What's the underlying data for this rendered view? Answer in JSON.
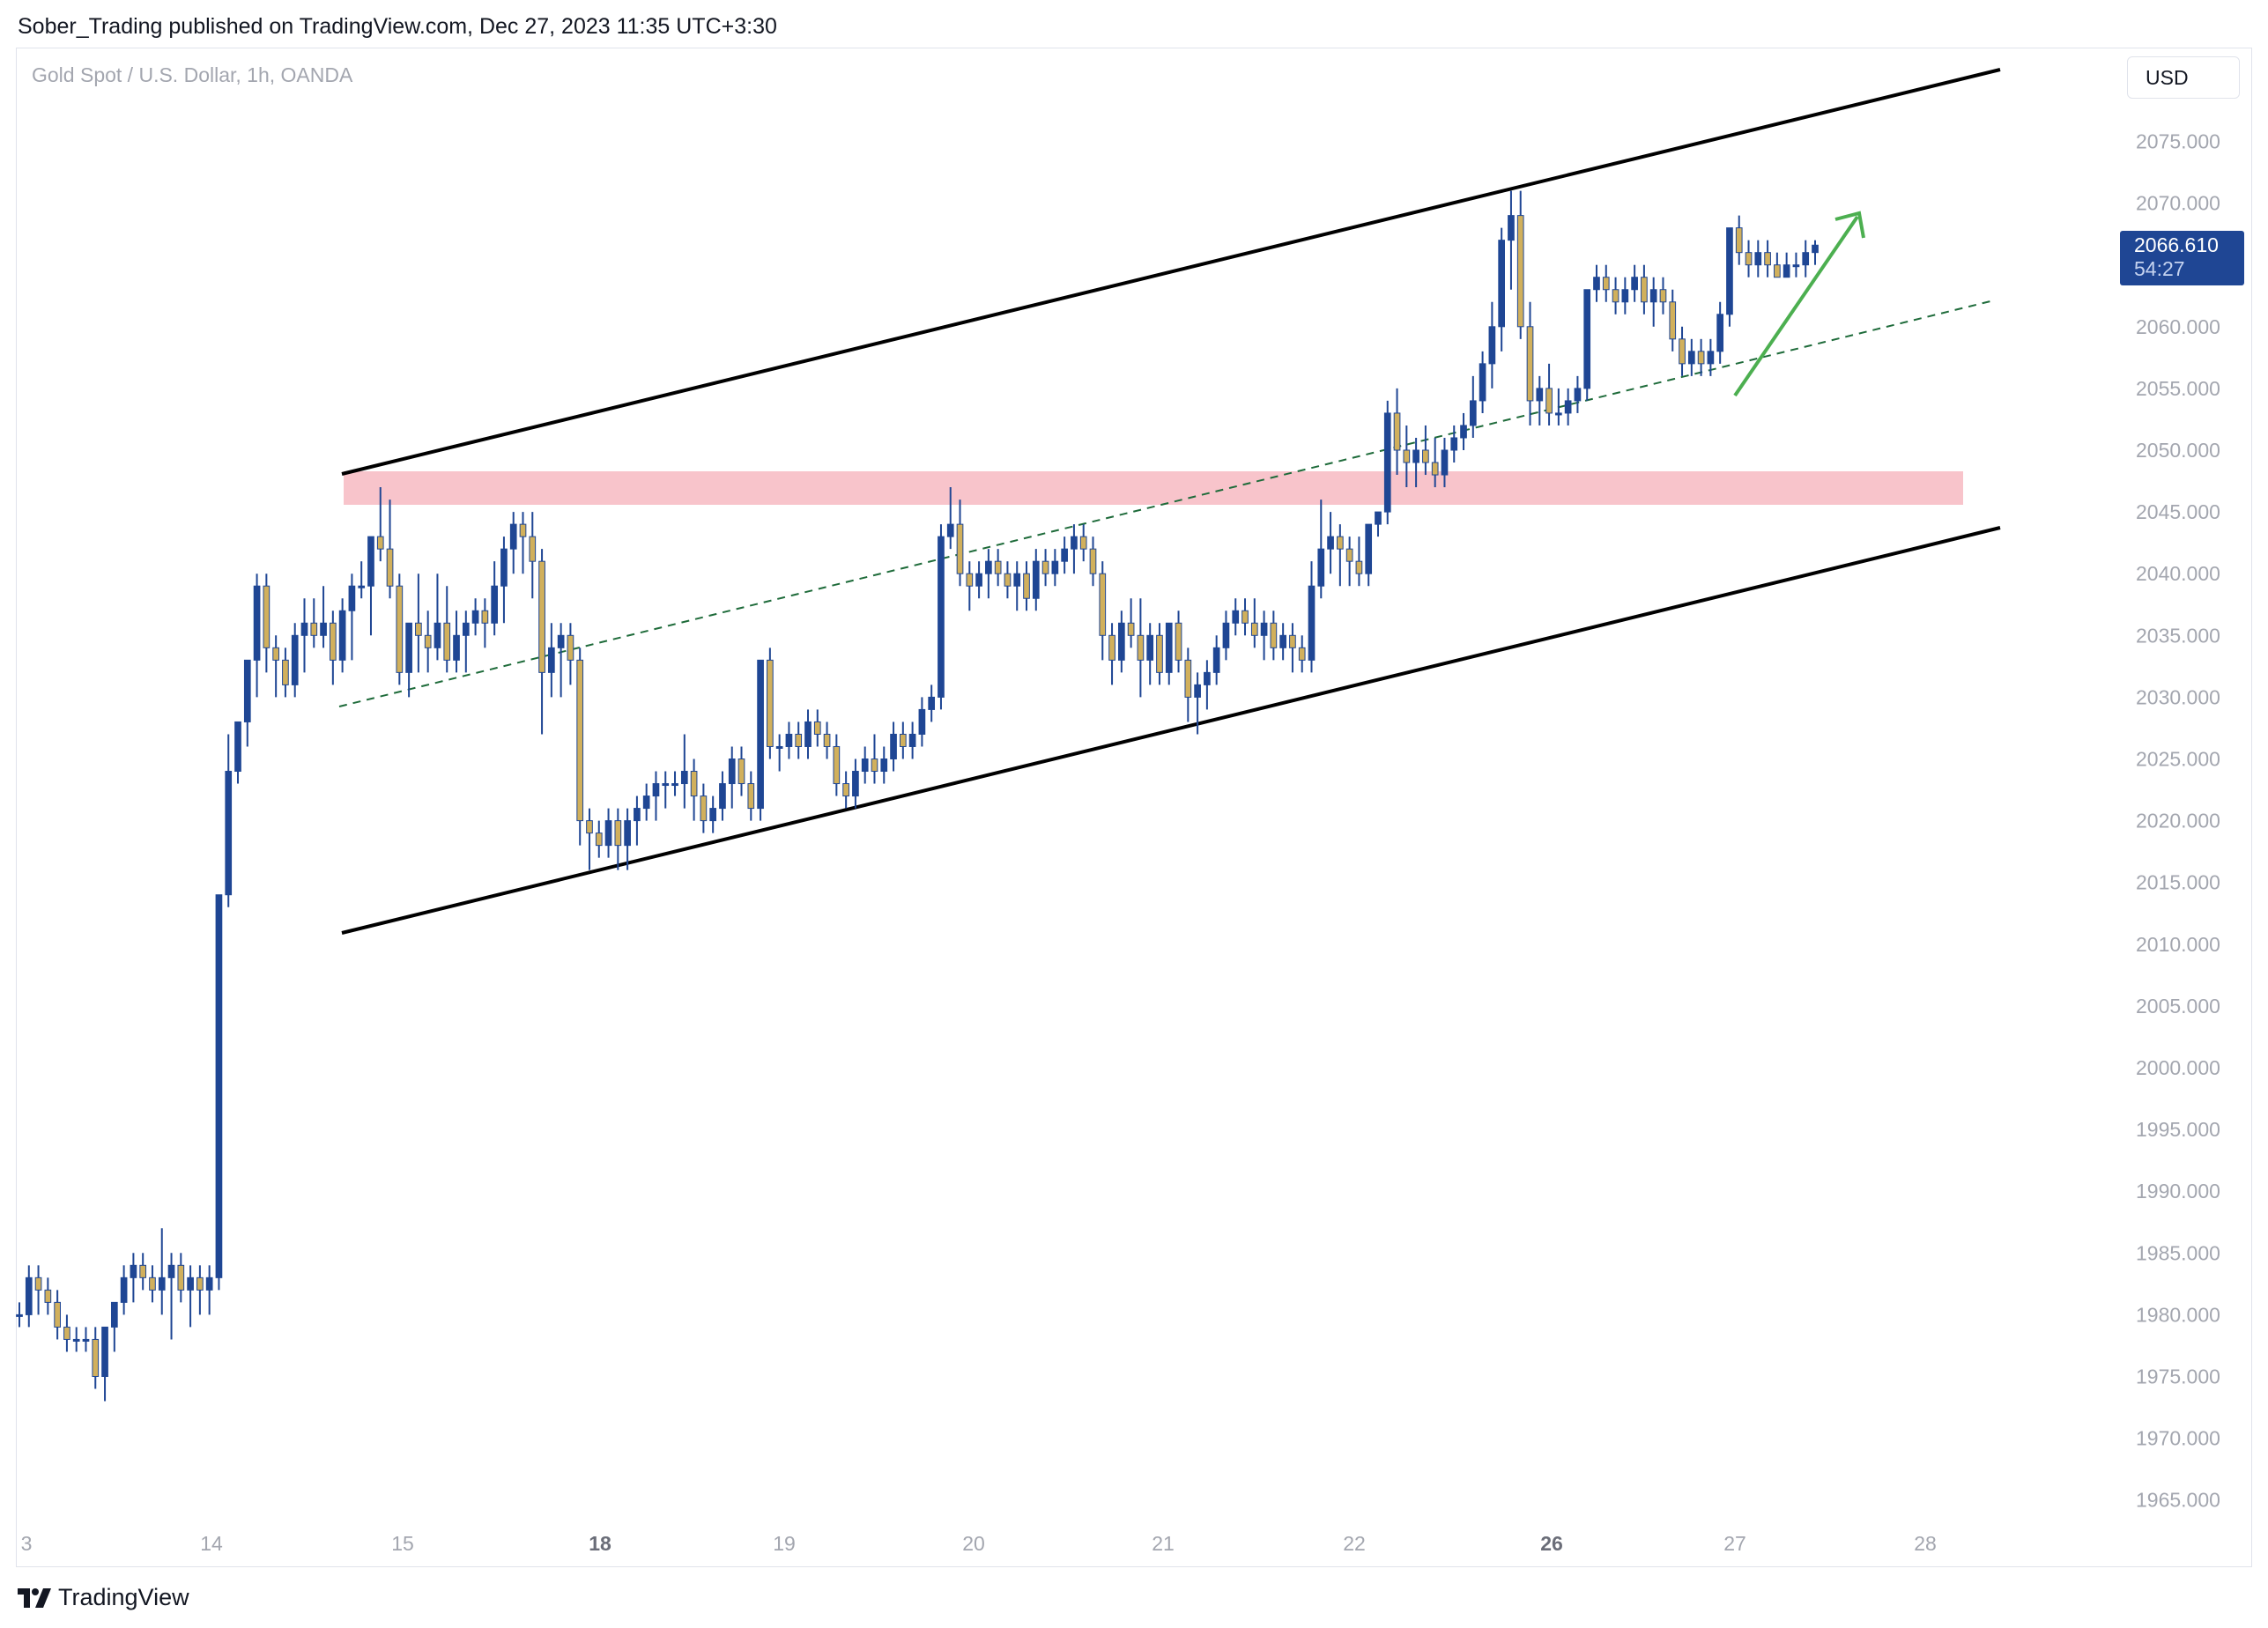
{
  "publisher": "Sober_Trading published on TradingView.com, Dec 27, 2023 11:35 UTC+3:30",
  "symbol": "Gold Spot / U.S. Dollar, 1h, OANDA",
  "currency": "USD",
  "last_price": "2066.610",
  "countdown": "54:27",
  "brand": "TradingView",
  "colors": {
    "up": "#1f4694",
    "down": "#d1b05c",
    "channel": "#000000",
    "midline": "#1e6b3a",
    "zone": "#f8c4cb",
    "arrow": "#4caf50"
  },
  "chart_data": {
    "type": "candlestick",
    "ylim": [
      1960,
      2080
    ],
    "y_ticks": [
      "2075.000",
      "2070.000",
      "2065.000",
      "2060.000",
      "2055.000",
      "2050.000",
      "2045.000",
      "2040.000",
      "2035.000",
      "2030.000",
      "2025.000",
      "2020.000",
      "2015.000",
      "2010.000",
      "2005.000",
      "2000.000",
      "1995.000",
      "1990.000",
      "1985.000",
      "1980.000",
      "1975.000",
      "1970.000",
      "1965.000"
    ],
    "x_ticks": [
      {
        "label": "3",
        "bold": false
      },
      {
        "label": "14",
        "bold": false
      },
      {
        "label": "15",
        "bold": false
      },
      {
        "label": "18",
        "bold": true
      },
      {
        "label": "19",
        "bold": false
      },
      {
        "label": "20",
        "bold": false
      },
      {
        "label": "21",
        "bold": false
      },
      {
        "label": "22",
        "bold": false
      },
      {
        "label": "26",
        "bold": true
      },
      {
        "label": "27",
        "bold": false
      },
      {
        "label": "28",
        "bold": false
      }
    ],
    "candles": [
      [
        1980,
        1981,
        1979,
        1980
      ],
      [
        1980,
        1984,
        1979,
        1983
      ],
      [
        1983,
        1984,
        1980,
        1982
      ],
      [
        1982,
        1983,
        1980,
        1981
      ],
      [
        1981,
        1982,
        1978,
        1979
      ],
      [
        1979,
        1980,
        1977,
        1978
      ],
      [
        1978,
        1979,
        1977,
        1978
      ],
      [
        1978,
        1979,
        1977,
        1978
      ],
      [
        1978,
        1979,
        1974,
        1975
      ],
      [
        1975,
        1979,
        1973,
        1979
      ],
      [
        1979,
        1981,
        1977,
        1981
      ],
      [
        1981,
        1984,
        1980,
        1983
      ],
      [
        1983,
        1985,
        1981,
        1984
      ],
      [
        1984,
        1985,
        1982,
        1983
      ],
      [
        1983,
        1984,
        1981,
        1982
      ],
      [
        1982,
        1987,
        1980,
        1983
      ],
      [
        1983,
        1985,
        1978,
        1984
      ],
      [
        1984,
        1985,
        1981,
        1982
      ],
      [
        1982,
        1984,
        1979,
        1983
      ],
      [
        1983,
        1984,
        1980,
        1982
      ],
      [
        1982,
        1984,
        1980,
        1983
      ],
      [
        1983,
        2014,
        1982,
        2014
      ],
      [
        2014,
        2027,
        2013,
        2024
      ],
      [
        2024,
        2028,
        2023,
        2028
      ],
      [
        2028,
        2033,
        2026,
        2033
      ],
      [
        2033,
        2040,
        2030,
        2039
      ],
      [
        2039,
        2040,
        2032,
        2034
      ],
      [
        2034,
        2035,
        2030,
        2033
      ],
      [
        2033,
        2034,
        2030,
        2031
      ],
      [
        2031,
        2036,
        2030,
        2035
      ],
      [
        2035,
        2038,
        2032,
        2036
      ],
      [
        2036,
        2038,
        2034,
        2035
      ],
      [
        2035,
        2039,
        2034,
        2036
      ],
      [
        2036,
        2037,
        2031,
        2033
      ],
      [
        2033,
        2038,
        2032,
        2037
      ],
      [
        2037,
        2040,
        2033,
        2039
      ],
      [
        2039,
        2041,
        2038,
        2039
      ],
      [
        2039,
        2043,
        2035,
        2043
      ],
      [
        2043,
        2047,
        2041,
        2042
      ],
      [
        2042,
        2046,
        2038,
        2039
      ],
      [
        2039,
        2040,
        2031,
        2032
      ],
      [
        2032,
        2036,
        2030,
        2036
      ],
      [
        2036,
        2040,
        2032,
        2035
      ],
      [
        2035,
        2037,
        2032,
        2034
      ],
      [
        2034,
        2040,
        2033,
        2036
      ],
      [
        2036,
        2039,
        2032,
        2033
      ],
      [
        2033,
        2037,
        2032,
        2035
      ],
      [
        2035,
        2037,
        2032,
        2036
      ],
      [
        2036,
        2038,
        2035,
        2037
      ],
      [
        2037,
        2038,
        2034,
        2036
      ],
      [
        2036,
        2041,
        2035,
        2039
      ],
      [
        2039,
        2043,
        2036,
        2042
      ],
      [
        2042,
        2045,
        2040,
        2044
      ],
      [
        2044,
        2045,
        2040,
        2043
      ],
      [
        2043,
        2045,
        2038,
        2041
      ],
      [
        2041,
        2042,
        2027,
        2032
      ],
      [
        2032,
        2036,
        2030,
        2034
      ],
      [
        2034,
        2036,
        2030,
        2035
      ],
      [
        2035,
        2036,
        2031,
        2033
      ],
      [
        2033,
        2034,
        2018,
        2020
      ],
      [
        2020,
        2021,
        2016,
        2019
      ],
      [
        2019,
        2020,
        2017,
        2018
      ],
      [
        2018,
        2021,
        2017,
        2020
      ],
      [
        2020,
        2021,
        2016,
        2018
      ],
      [
        2018,
        2021,
        2016,
        2020
      ],
      [
        2020,
        2022,
        2018,
        2021
      ],
      [
        2021,
        2023,
        2020,
        2022
      ],
      [
        2022,
        2024,
        2020,
        2023
      ],
      [
        2023,
        2024,
        2021,
        2023
      ],
      [
        2023,
        2024,
        2022,
        2023
      ],
      [
        2023,
        2027,
        2021,
        2024
      ],
      [
        2024,
        2025,
        2020,
        2022
      ],
      [
        2022,
        2023,
        2019,
        2020
      ],
      [
        2020,
        2022,
        2019,
        2021
      ],
      [
        2021,
        2024,
        2020,
        2023
      ],
      [
        2023,
        2026,
        2021,
        2025
      ],
      [
        2025,
        2026,
        2022,
        2023
      ],
      [
        2023,
        2024,
        2020,
        2021
      ],
      [
        2021,
        2033,
        2020,
        2033
      ],
      [
        2033,
        2034,
        2025,
        2026
      ],
      [
        2026,
        2027,
        2024,
        2026
      ],
      [
        2026,
        2028,
        2025,
        2027
      ],
      [
        2027,
        2028,
        2025,
        2026
      ],
      [
        2026,
        2029,
        2025,
        2028
      ],
      [
        2028,
        2029,
        2026,
        2027
      ],
      [
        2027,
        2028,
        2025,
        2026
      ],
      [
        2026,
        2027,
        2022,
        2023
      ],
      [
        2023,
        2024,
        2021,
        2022
      ],
      [
        2022,
        2025,
        2021,
        2024
      ],
      [
        2024,
        2026,
        2023,
        2025
      ],
      [
        2025,
        2027,
        2023,
        2024
      ],
      [
        2024,
        2026,
        2023,
        2025
      ],
      [
        2025,
        2028,
        2024,
        2027
      ],
      [
        2027,
        2028,
        2025,
        2026
      ],
      [
        2026,
        2028,
        2025,
        2027
      ],
      [
        2027,
        2030,
        2026,
        2029
      ],
      [
        2029,
        2031,
        2028,
        2030
      ],
      [
        2030,
        2044,
        2029,
        2043
      ],
      [
        2043,
        2047,
        2042,
        2044
      ],
      [
        2044,
        2046,
        2039,
        2040
      ],
      [
        2040,
        2041,
        2037,
        2039
      ],
      [
        2039,
        2041,
        2038,
        2040
      ],
      [
        2040,
        2042,
        2038,
        2041
      ],
      [
        2041,
        2042,
        2039,
        2040
      ],
      [
        2040,
        2041,
        2038,
        2039
      ],
      [
        2039,
        2041,
        2037,
        2040
      ],
      [
        2040,
        2041,
        2037,
        2038
      ],
      [
        2038,
        2042,
        2037,
        2041
      ],
      [
        2041,
        2042,
        2039,
        2040
      ],
      [
        2040,
        2042,
        2039,
        2041
      ],
      [
        2041,
        2043,
        2040,
        2042
      ],
      [
        2042,
        2044,
        2040,
        2043
      ],
      [
        2043,
        2044,
        2041,
        2042
      ],
      [
        2042,
        2043,
        2039,
        2040
      ],
      [
        2040,
        2041,
        2033,
        2035
      ],
      [
        2035,
        2036,
        2031,
        2033
      ],
      [
        2033,
        2037,
        2032,
        2036
      ],
      [
        2036,
        2038,
        2034,
        2035
      ],
      [
        2035,
        2038,
        2030,
        2033
      ],
      [
        2033,
        2036,
        2031,
        2035
      ],
      [
        2035,
        2036,
        2031,
        2032
      ],
      [
        2032,
        2036,
        2031,
        2036
      ],
      [
        2036,
        2037,
        2032,
        2033
      ],
      [
        2033,
        2034,
        2028,
        2030
      ],
      [
        2030,
        2032,
        2027,
        2031
      ],
      [
        2031,
        2033,
        2029,
        2032
      ],
      [
        2032,
        2035,
        2031,
        2034
      ],
      [
        2034,
        2037,
        2033,
        2036
      ],
      [
        2036,
        2038,
        2035,
        2037
      ],
      [
        2037,
        2038,
        2035,
        2036
      ],
      [
        2036,
        2038,
        2034,
        2035
      ],
      [
        2035,
        2037,
        2033,
        2036
      ],
      [
        2036,
        2037,
        2033,
        2034
      ],
      [
        2034,
        2036,
        2033,
        2035
      ],
      [
        2035,
        2036,
        2032,
        2034
      ],
      [
        2034,
        2035,
        2032,
        2033
      ],
      [
        2033,
        2041,
        2032,
        2039
      ],
      [
        2039,
        2046,
        2038,
        2042
      ],
      [
        2042,
        2045,
        2040,
        2043
      ],
      [
        2043,
        2044,
        2039,
        2042
      ],
      [
        2042,
        2043,
        2039,
        2041
      ],
      [
        2041,
        2043,
        2039,
        2040
      ],
      [
        2040,
        2044,
        2039,
        2044
      ],
      [
        2044,
        2045,
        2043,
        2045
      ],
      [
        2045,
        2054,
        2044,
        2053
      ],
      [
        2053,
        2055,
        2048,
        2050
      ],
      [
        2050,
        2052,
        2047,
        2049
      ],
      [
        2049,
        2051,
        2047,
        2050
      ],
      [
        2050,
        2052,
        2048,
        2049
      ],
      [
        2049,
        2051,
        2047,
        2048
      ],
      [
        2048,
        2051,
        2047,
        2050
      ],
      [
        2050,
        2052,
        2049,
        2051
      ],
      [
        2051,
        2053,
        2050,
        2052
      ],
      [
        2052,
        2056,
        2051,
        2054
      ],
      [
        2054,
        2058,
        2053,
        2057
      ],
      [
        2057,
        2062,
        2055,
        2060
      ],
      [
        2060,
        2068,
        2058,
        2067
      ],
      [
        2067,
        2071,
        2063,
        2069
      ],
      [
        2069,
        2071,
        2059,
        2060
      ],
      [
        2060,
        2062,
        2052,
        2054
      ],
      [
        2054,
        2056,
        2052,
        2055
      ],
      [
        2055,
        2057,
        2052,
        2053
      ],
      [
        2053,
        2055,
        2052,
        2053
      ],
      [
        2053,
        2055,
        2052,
        2054
      ],
      [
        2054,
        2056,
        2053,
        2055
      ],
      [
        2055,
        2063,
        2054,
        2063
      ],
      [
        2063,
        2065,
        2062,
        2064
      ],
      [
        2064,
        2065,
        2062,
        2063
      ],
      [
        2063,
        2064,
        2061,
        2062
      ],
      [
        2062,
        2064,
        2061,
        2063
      ],
      [
        2063,
        2065,
        2062,
        2064
      ],
      [
        2064,
        2065,
        2061,
        2062
      ],
      [
        2062,
        2064,
        2060,
        2063
      ],
      [
        2063,
        2064,
        2061,
        2062
      ],
      [
        2062,
        2063,
        2058,
        2059
      ],
      [
        2059,
        2060,
        2056,
        2057
      ],
      [
        2057,
        2059,
        2056,
        2058
      ],
      [
        2058,
        2059,
        2056,
        2057
      ],
      [
        2057,
        2059,
        2056,
        2058
      ],
      [
        2058,
        2062,
        2057,
        2061
      ],
      [
        2061,
        2068,
        2060,
        2068
      ],
      [
        2068,
        2069,
        2065,
        2066
      ],
      [
        2066,
        2067,
        2064,
        2065
      ],
      [
        2065,
        2067,
        2064,
        2066
      ],
      [
        2066,
        2067,
        2064,
        2065
      ],
      [
        2065,
        2066,
        2064,
        2064
      ],
      [
        2064,
        2066,
        2064,
        2065
      ],
      [
        2065,
        2066,
        2064,
        2065
      ],
      [
        2065,
        2067,
        2064,
        2066
      ],
      [
        2066,
        2067,
        2065,
        2066.6
      ]
    ]
  }
}
